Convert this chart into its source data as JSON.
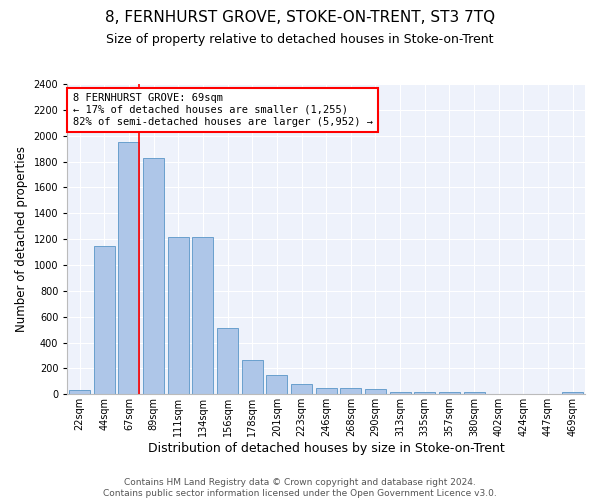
{
  "title": "8, FERNHURST GROVE, STOKE-ON-TRENT, ST3 7TQ",
  "subtitle": "Size of property relative to detached houses in Stoke-on-Trent",
  "xlabel": "Distribution of detached houses by size in Stoke-on-Trent",
  "ylabel": "Number of detached properties",
  "bar_labels": [
    "22sqm",
    "44sqm",
    "67sqm",
    "89sqm",
    "111sqm",
    "134sqm",
    "156sqm",
    "178sqm",
    "201sqm",
    "223sqm",
    "246sqm",
    "268sqm",
    "290sqm",
    "313sqm",
    "335sqm",
    "357sqm",
    "380sqm",
    "402sqm",
    "424sqm",
    "447sqm",
    "469sqm"
  ],
  "bar_values": [
    30,
    1150,
    1950,
    1830,
    1220,
    1220,
    510,
    265,
    150,
    80,
    50,
    45,
    40,
    20,
    20,
    15,
    20,
    5,
    5,
    5,
    20
  ],
  "bar_color": "#aec6e8",
  "bar_edge_color": "#5a96c8",
  "annotation_text_line1": "8 FERNHURST GROVE: 69sqm",
  "annotation_text_line2": "← 17% of detached houses are smaller (1,255)",
  "annotation_text_line3": "82% of semi-detached houses are larger (5,952) →",
  "vline_color": "red",
  "vline_x_index": 2,
  "ylim": [
    0,
    2400
  ],
  "ytick_step": 200,
  "footer_line1": "Contains HM Land Registry data © Crown copyright and database right 2024.",
  "footer_line2": "Contains public sector information licensed under the Open Government Licence v3.0.",
  "bg_color": "#eef2fb",
  "title_fontsize": 11,
  "subtitle_fontsize": 9,
  "xlabel_fontsize": 9,
  "ylabel_fontsize": 8.5,
  "footer_fontsize": 6.5,
  "annotation_fontsize": 7.5,
  "tick_fontsize": 7
}
